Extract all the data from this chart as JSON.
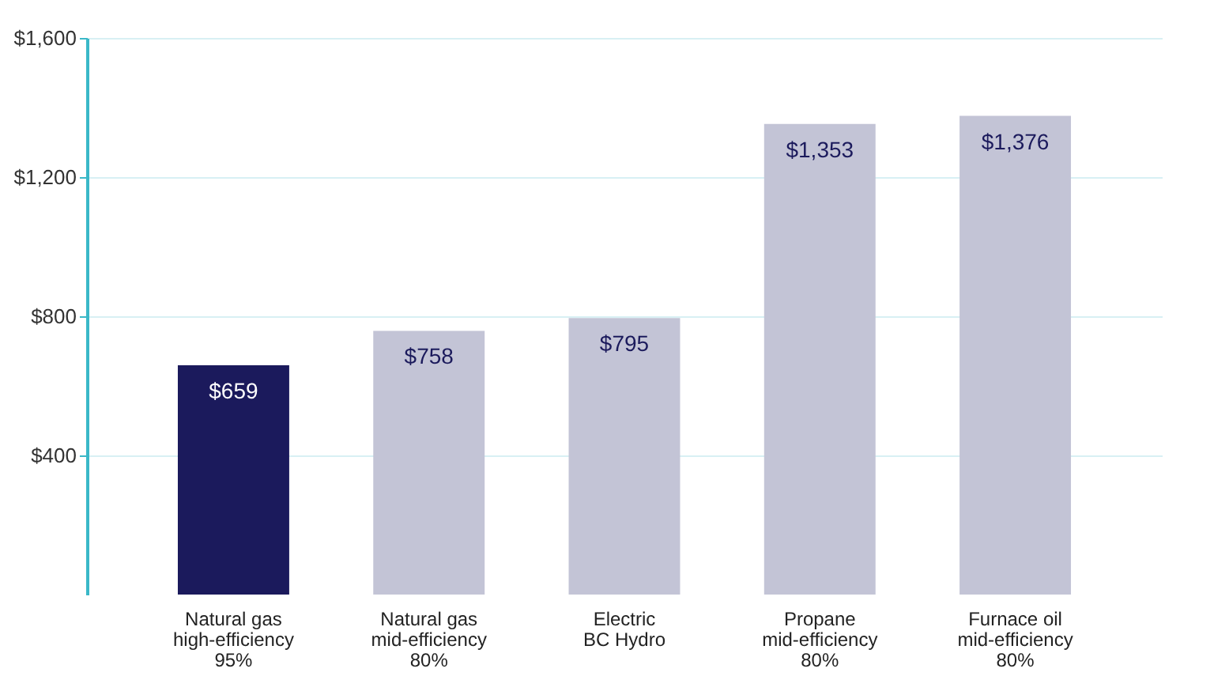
{
  "chart_data": {
    "type": "bar",
    "categories": [
      "Natural gas\nhigh-efficiency\n95%",
      "Natural gas\nmid-efficiency\n80%",
      "Electric\nBC Hydro",
      "Propane\nmid-efficiency\n80%",
      "Furnace oil\nmid-efficiency\n80%"
    ],
    "values": [
      659,
      758,
      795,
      1353,
      1376
    ],
    "colors": [
      "#1b1a5c",
      "#c3c4d6",
      "#c3c4d6",
      "#c3c4d6",
      "#c3c4d6"
    ],
    "value_labels": [
      "$659",
      "$758",
      "$795",
      "$1,353",
      "$1,376"
    ],
    "ylim": [
      0,
      1600
    ],
    "yticks": [
      {
        "value": 400,
        "label": "$400"
      },
      {
        "value": 800,
        "label": "$800"
      },
      {
        "value": 1200,
        "label": "$1,200"
      },
      {
        "value": 1600,
        "label": "$1,600"
      }
    ],
    "grid": "y"
  }
}
